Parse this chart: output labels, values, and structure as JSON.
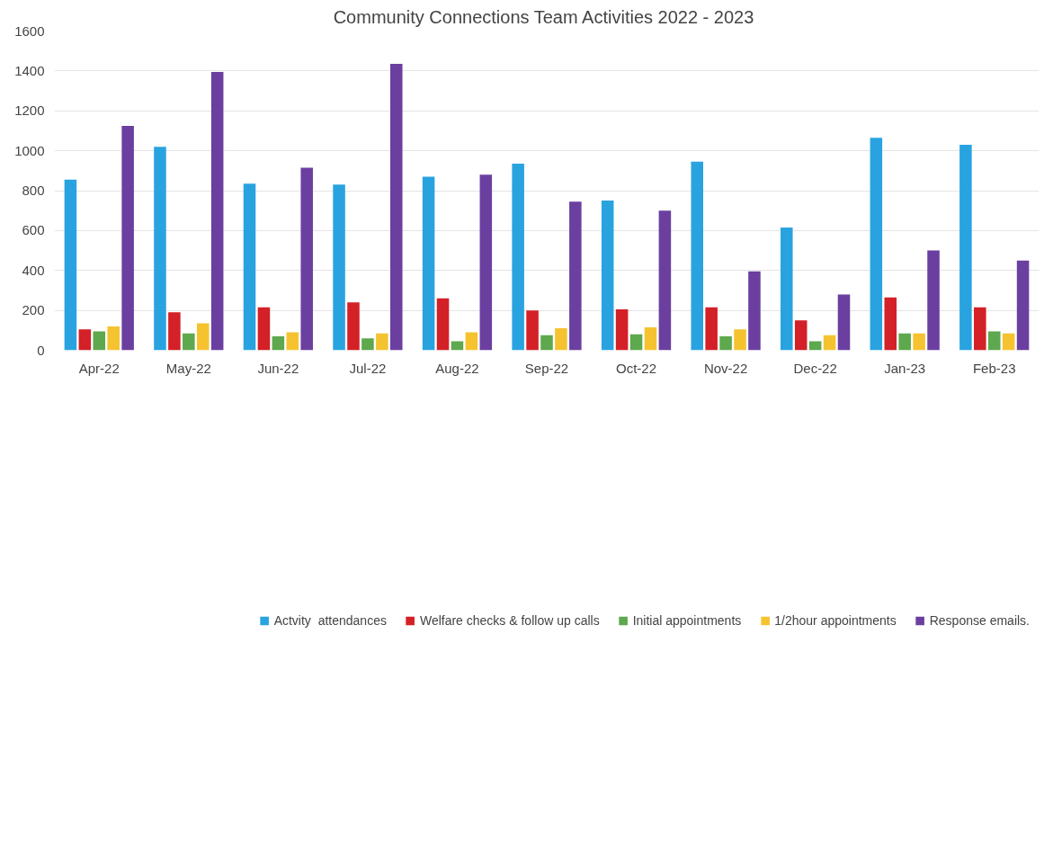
{
  "chart_data": {
    "type": "bar",
    "title": "Community Connections Team Activities  2022 - 2023",
    "categories": [
      "Apr-22",
      "May-22",
      "Jun-22",
      "Jul-22",
      "Aug-22",
      "Sep-22",
      "Oct-22",
      "Nov-22",
      "Dec-22",
      "Jan-23",
      "Feb-23"
    ],
    "series": [
      {
        "name": "Actvity  attendances",
        "color": "#29a3e0",
        "values": [
          855,
          1020,
          835,
          830,
          870,
          935,
          750,
          945,
          615,
          1065,
          1030
        ]
      },
      {
        "name": "Welfare checks & follow up calls",
        "color": "#d42027",
        "values": [
          105,
          190,
          215,
          240,
          260,
          200,
          205,
          215,
          150,
          265,
          215
        ]
      },
      {
        "name": "Initial appointments",
        "color": "#5ea84e",
        "values": [
          95,
          85,
          70,
          60,
          45,
          75,
          80,
          70,
          45,
          85,
          95
        ]
      },
      {
        "name": "1/2hour appointments",
        "color": "#f5c330",
        "values": [
          120,
          135,
          90,
          85,
          90,
          110,
          115,
          105,
          75,
          85,
          85
        ]
      },
      {
        "name": "Response emails.",
        "color": "#6b3fa0",
        "values": [
          1125,
          1395,
          915,
          1435,
          880,
          745,
          700,
          395,
          280,
          500,
          450
        ]
      }
    ],
    "ylim": [
      0,
      1600
    ],
    "yticks": [
      0,
      200,
      400,
      600,
      800,
      1000,
      1200,
      1400,
      1600
    ],
    "grid": "y",
    "legend": "bottom"
  }
}
